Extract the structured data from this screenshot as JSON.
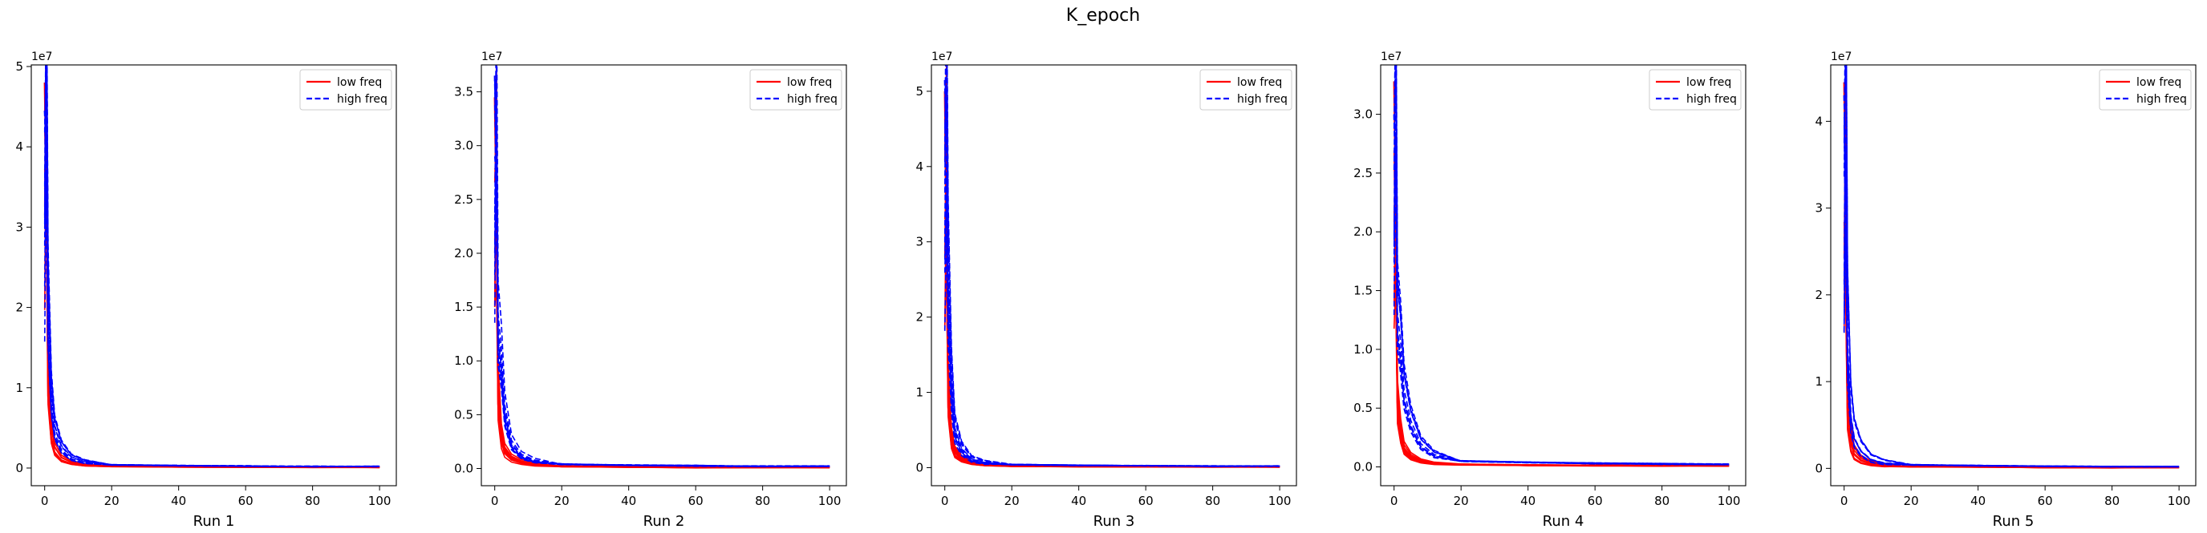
{
  "figure": {
    "title": "K_epoch"
  },
  "legend_labels": [
    "low freq",
    "high freq"
  ],
  "chart_data": [
    {
      "type": "line",
      "xlabel": "Run 1",
      "offset_label": "1e7",
      "xlim": [
        -4,
        105
      ],
      "ylim": [
        -0.22,
        5.02
      ],
      "xticks": [
        0,
        20,
        40,
        60,
        80,
        100
      ],
      "yticks": [
        0,
        1,
        2,
        3,
        4,
        5
      ],
      "ytick_labels": [
        "0",
        "1",
        "2",
        "3",
        "4",
        "5"
      ],
      "legend_position": "upper right",
      "grid": false,
      "series": [
        {
          "name": "low freq",
          "style": "solid",
          "color": "#ff0000",
          "peak": 4.8,
          "x": [
            0,
            0.5,
            1,
            2,
            3,
            5,
            8,
            12,
            20,
            40,
            60,
            80,
            100
          ],
          "values": [
            4.8,
            3.4,
            0.9,
            0.35,
            0.18,
            0.09,
            0.05,
            0.03,
            0.02,
            0.015,
            0.012,
            0.01,
            0.01
          ]
        },
        {
          "name": "high freq",
          "style": "dashed",
          "color": "#0000ff",
          "peak": 4.45,
          "x": [
            0,
            0.5,
            1,
            2,
            3,
            5,
            8,
            12,
            20,
            40,
            60,
            80,
            100
          ],
          "values": [
            4.45,
            3.9,
            1.6,
            0.7,
            0.38,
            0.2,
            0.1,
            0.06,
            0.04,
            0.03,
            0.025,
            0.02,
            0.02
          ]
        }
      ]
    },
    {
      "type": "line",
      "xlabel": "Run 2",
      "offset_label": "1e7",
      "xlim": [
        -4,
        105
      ],
      "ylim": [
        -0.16,
        3.75
      ],
      "xticks": [
        0,
        20,
        40,
        60,
        80,
        100
      ],
      "yticks": [
        0,
        0.5,
        1,
        1.5,
        2,
        2.5,
        3,
        3.5
      ],
      "ytick_labels": [
        "0.0",
        "0.5",
        "1.0",
        "1.5",
        "2.0",
        "2.5",
        "3.0",
        "3.5"
      ],
      "legend_position": "upper right",
      "grid": false,
      "series": [
        {
          "name": "low freq",
          "style": "solid",
          "color": "#ff0000",
          "peak": 3.45,
          "x": [
            0,
            0.5,
            1,
            2,
            3,
            5,
            8,
            12,
            20,
            40,
            60,
            80,
            100
          ],
          "values": [
            3.45,
            2.3,
            0.6,
            0.25,
            0.14,
            0.08,
            0.05,
            0.03,
            0.02,
            0.015,
            0.01,
            0.01,
            0.01
          ]
        },
        {
          "name": "high freq",
          "style": "dashed",
          "color": "#0000ff",
          "peak": 3.65,
          "x": [
            0,
            0.5,
            1,
            2,
            3,
            5,
            8,
            12,
            20,
            40,
            60,
            80,
            100
          ],
          "values": [
            3.65,
            2.9,
            1.1,
            0.85,
            0.45,
            0.2,
            0.1,
            0.06,
            0.04,
            0.03,
            0.025,
            0.02,
            0.02
          ]
        }
      ]
    },
    {
      "type": "line",
      "xlabel": "Run 3",
      "offset_label": "1e7",
      "xlim": [
        -4,
        105
      ],
      "ylim": [
        -0.24,
        5.35
      ],
      "xticks": [
        0,
        20,
        40,
        60,
        80,
        100
      ],
      "yticks": [
        0,
        1,
        2,
        3,
        4,
        5
      ],
      "ytick_labels": [
        "0",
        "1",
        "2",
        "3",
        "4",
        "5"
      ],
      "legend_position": "upper right",
      "grid": false,
      "series": [
        {
          "name": "low freq",
          "style": "solid",
          "color": "#ff0000",
          "peak": 5.0,
          "x": [
            0,
            0.5,
            1,
            2,
            3,
            5,
            8,
            12,
            20,
            40,
            60,
            80,
            100
          ],
          "values": [
            5.0,
            3.0,
            0.8,
            0.3,
            0.16,
            0.09,
            0.05,
            0.03,
            0.02,
            0.015,
            0.012,
            0.01,
            0.01
          ]
        },
        {
          "name": "high freq",
          "style": "dashed",
          "color": "#0000ff",
          "peak": 5.15,
          "x": [
            0,
            0.5,
            1,
            2,
            3,
            5,
            8,
            12,
            20,
            40,
            60,
            80,
            100
          ],
          "values": [
            5.15,
            4.3,
            2.2,
            1.0,
            0.45,
            0.22,
            0.1,
            0.06,
            0.04,
            0.03,
            0.025,
            0.02,
            0.02
          ]
        }
      ]
    },
    {
      "type": "line",
      "xlabel": "Run 4",
      "offset_label": "1e7",
      "xlim": [
        -4,
        105
      ],
      "ylim": [
        -0.16,
        3.42
      ],
      "xticks": [
        0,
        20,
        40,
        60,
        80,
        100
      ],
      "yticks": [
        0,
        0.5,
        1,
        1.5,
        2,
        2.5,
        3
      ],
      "ytick_labels": [
        "0.0",
        "0.5",
        "1.0",
        "1.5",
        "2.0",
        "2.5",
        "3.0"
      ],
      "legend_position": "upper right",
      "grid": false,
      "series": [
        {
          "name": "low freq",
          "style": "solid",
          "color": "#ff0000",
          "peak": 3.28,
          "x": [
            0,
            0.5,
            1,
            2,
            3,
            5,
            8,
            12,
            20,
            40,
            60,
            80,
            100
          ],
          "values": [
            3.28,
            2.1,
            0.55,
            0.3,
            0.16,
            0.09,
            0.05,
            0.03,
            0.02,
            0.015,
            0.012,
            0.01,
            0.01
          ]
        },
        {
          "name": "high freq",
          "style": "dashed",
          "color": "#0000ff",
          "peak": 3.0,
          "x": [
            0,
            0.5,
            1,
            2,
            3,
            5,
            8,
            12,
            20,
            40,
            60,
            80,
            100
          ],
          "values": [
            3.0,
            2.5,
            1.0,
            0.8,
            0.5,
            0.3,
            0.15,
            0.08,
            0.05,
            0.04,
            0.03,
            0.025,
            0.02
          ]
        }
      ]
    },
    {
      "type": "line",
      "xlabel": "Run 5",
      "offset_label": "1e7",
      "xlim": [
        -4,
        105
      ],
      "ylim": [
        -0.2,
        4.65
      ],
      "xticks": [
        0,
        20,
        40,
        60,
        80,
        100
      ],
      "yticks": [
        0,
        1,
        2,
        3,
        4
      ],
      "ytick_labels": [
        "0",
        "1",
        "2",
        "3",
        "4"
      ],
      "legend_position": "upper right",
      "grid": false,
      "series": [
        {
          "name": "low freq",
          "style": "solid",
          "color": "#ff0000",
          "peak": 4.45,
          "x": [
            0,
            0.5,
            1,
            2,
            3,
            5,
            8,
            12,
            20,
            40,
            60,
            80,
            100
          ],
          "values": [
            4.45,
            2.8,
            0.7,
            0.3,
            0.16,
            0.09,
            0.05,
            0.03,
            0.02,
            0.015,
            0.012,
            0.01,
            0.01
          ]
        },
        {
          "name": "high freq",
          "style": "dashed",
          "color": "#0000ff",
          "peak": 4.3,
          "x": [
            0,
            0.5,
            1,
            2,
            3,
            5,
            8,
            12,
            20,
            40,
            60,
            80,
            100
          ],
          "values": [
            4.3,
            3.6,
            1.4,
            0.6,
            0.35,
            0.2,
            0.1,
            0.06,
            0.04,
            0.03,
            0.025,
            0.02,
            0.02
          ]
        }
      ]
    }
  ]
}
